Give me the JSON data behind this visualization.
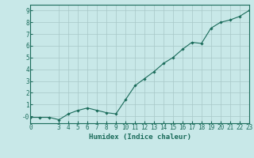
{
  "x": [
    0,
    1,
    2,
    3,
    4,
    5,
    6,
    7,
    8,
    9,
    10,
    11,
    12,
    13,
    14,
    15,
    16,
    17,
    18,
    19,
    20,
    21,
    22,
    23
  ],
  "y": [
    -0.1,
    -0.1,
    -0.1,
    -0.3,
    0.2,
    0.5,
    0.7,
    0.5,
    0.3,
    0.2,
    1.4,
    2.6,
    3.2,
    3.8,
    4.5,
    5.0,
    5.7,
    6.3,
    6.2,
    7.5,
    8.0,
    8.2,
    8.5,
    9.0
  ],
  "line_color": "#1a6b5a",
  "marker": "D",
  "marker_size": 1.8,
  "bg_color": "#c8e8e8",
  "grid_color": "#a8c8c8",
  "axis_color": "#1a6b5a",
  "xlabel": "Humidex (Indice chaleur)",
  "xlim": [
    0,
    23
  ],
  "ylim": [
    -0.6,
    9.5
  ],
  "xticks": [
    0,
    3,
    4,
    5,
    6,
    7,
    8,
    9,
    10,
    11,
    12,
    13,
    14,
    15,
    16,
    17,
    18,
    19,
    20,
    21,
    22,
    23
  ],
  "yticks": [
    0,
    1,
    2,
    3,
    4,
    5,
    6,
    7,
    8,
    9
  ],
  "ytick_labels": [
    "-0",
    "1",
    "2",
    "3",
    "4",
    "5",
    "6",
    "7",
    "8",
    "9"
  ],
  "tick_label_fontsize": 5.5,
  "xlabel_fontsize": 6.5
}
